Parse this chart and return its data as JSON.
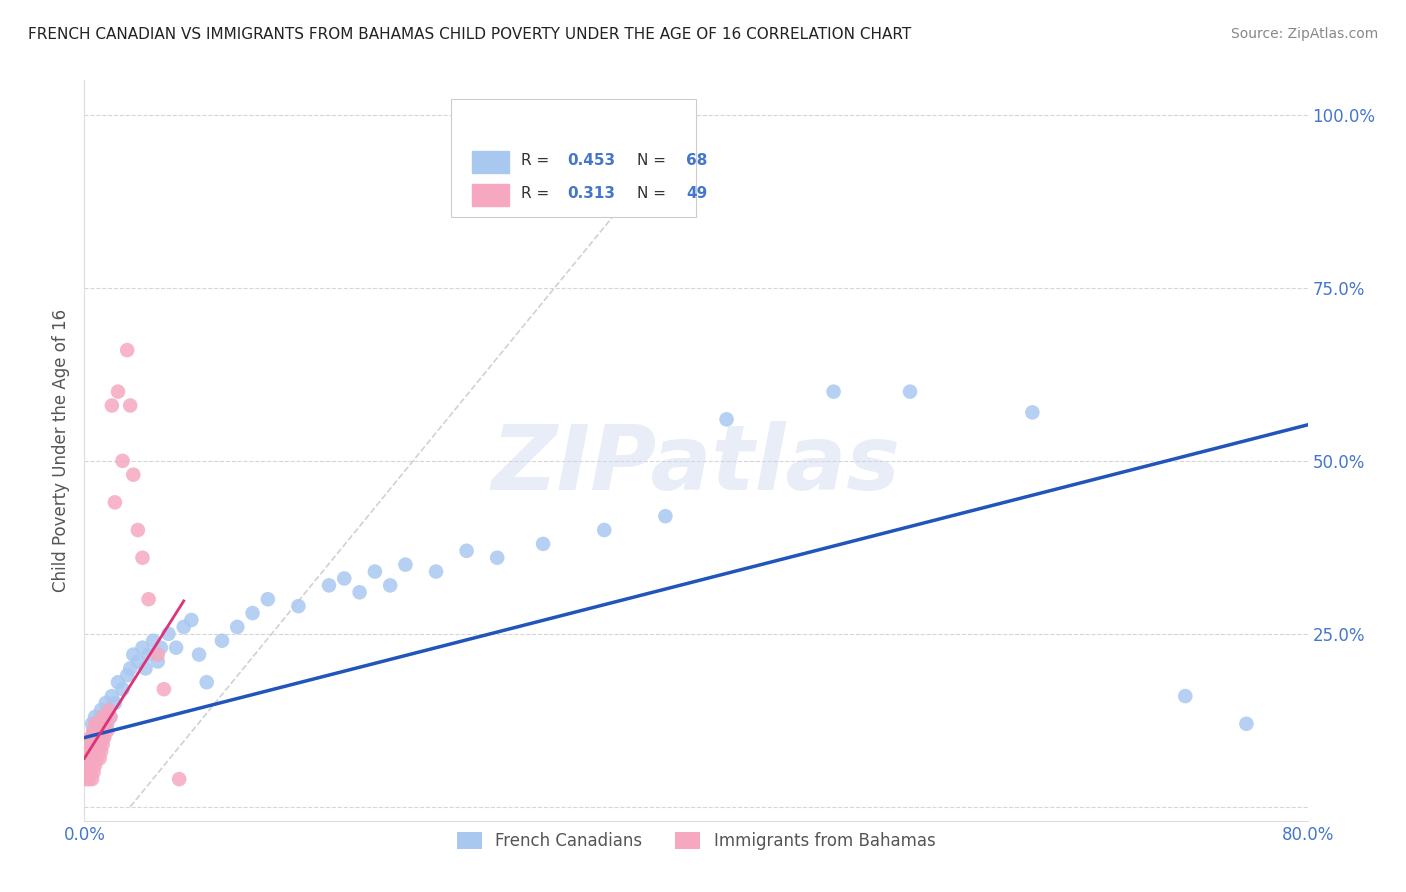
{
  "title": "FRENCH CANADIAN VS IMMIGRANTS FROM BAHAMAS CHILD POVERTY UNDER THE AGE OF 16 CORRELATION CHART",
  "source": "Source: ZipAtlas.com",
  "ylabel": "Child Poverty Under the Age of 16",
  "xlim": [
    0.0,
    0.8
  ],
  "ylim": [
    -0.02,
    1.05
  ],
  "ytick_vals": [
    0.0,
    0.25,
    0.5,
    0.75,
    1.0
  ],
  "ytick_labels": [
    "",
    "25.0%",
    "50.0%",
    "75.0%",
    "100.0%"
  ],
  "xtick_vals": [
    0.0,
    0.1,
    0.2,
    0.3,
    0.4,
    0.5,
    0.6,
    0.7,
    0.8
  ],
  "xtick_labels": [
    "0.0%",
    "",
    "",
    "",
    "",
    "",
    "",
    "",
    "80.0%"
  ],
  "watermark": "ZIPatlas",
  "blue_color": "#a8c8f0",
  "pink_color": "#f5a8c0",
  "blue_line_color": "#2255bb",
  "pink_line_color": "#dd3377",
  "legend_r_blue": "0.453",
  "legend_n_blue": "68",
  "legend_r_pink": "0.313",
  "legend_n_pink": "49",
  "legend_label_blue": "French Canadians",
  "legend_label_pink": "Immigrants from Bahamas",
  "title_color": "#222222",
  "axis_color": "#4477cc",
  "grid_color": "#cccccc",
  "bg_color": "#ffffff",
  "blue_scatter_x": [
    0.001,
    0.002,
    0.003,
    0.004,
    0.005,
    0.005,
    0.006,
    0.006,
    0.007,
    0.007,
    0.008,
    0.008,
    0.009,
    0.009,
    0.01,
    0.01,
    0.011,
    0.011,
    0.012,
    0.012,
    0.013,
    0.014,
    0.015,
    0.016,
    0.017,
    0.018,
    0.02,
    0.022,
    0.025,
    0.028,
    0.03,
    0.032,
    0.035,
    0.038,
    0.04,
    0.042,
    0.045,
    0.048,
    0.05,
    0.055,
    0.06,
    0.065,
    0.07,
    0.075,
    0.08,
    0.09,
    0.1,
    0.11,
    0.12,
    0.14,
    0.16,
    0.17,
    0.18,
    0.19,
    0.2,
    0.21,
    0.23,
    0.25,
    0.27,
    0.3,
    0.34,
    0.38,
    0.42,
    0.49,
    0.54,
    0.62,
    0.72,
    0.76
  ],
  "blue_scatter_y": [
    0.07,
    0.08,
    0.09,
    0.08,
    0.1,
    0.12,
    0.08,
    0.11,
    0.09,
    0.13,
    0.1,
    0.12,
    0.09,
    0.11,
    0.1,
    0.13,
    0.11,
    0.14,
    0.1,
    0.12,
    0.13,
    0.15,
    0.12,
    0.14,
    0.13,
    0.16,
    0.15,
    0.18,
    0.17,
    0.19,
    0.2,
    0.22,
    0.21,
    0.23,
    0.2,
    0.22,
    0.24,
    0.21,
    0.23,
    0.25,
    0.23,
    0.26,
    0.27,
    0.22,
    0.18,
    0.24,
    0.26,
    0.28,
    0.3,
    0.29,
    0.32,
    0.33,
    0.31,
    0.34,
    0.32,
    0.35,
    0.34,
    0.37,
    0.36,
    0.38,
    0.4,
    0.42,
    0.56,
    0.6,
    0.6,
    0.57,
    0.16,
    0.12
  ],
  "pink_scatter_x": [
    0.001,
    0.001,
    0.001,
    0.002,
    0.002,
    0.003,
    0.003,
    0.003,
    0.004,
    0.004,
    0.004,
    0.005,
    0.005,
    0.005,
    0.006,
    0.006,
    0.006,
    0.007,
    0.007,
    0.007,
    0.008,
    0.008,
    0.009,
    0.009,
    0.01,
    0.01,
    0.01,
    0.011,
    0.011,
    0.012,
    0.012,
    0.013,
    0.014,
    0.015,
    0.016,
    0.017,
    0.018,
    0.02,
    0.022,
    0.025,
    0.028,
    0.03,
    0.032,
    0.035,
    0.038,
    0.042,
    0.048,
    0.052,
    0.062
  ],
  "pink_scatter_y": [
    0.04,
    0.06,
    0.08,
    0.05,
    0.07,
    0.04,
    0.06,
    0.09,
    0.05,
    0.07,
    0.1,
    0.04,
    0.06,
    0.09,
    0.05,
    0.08,
    0.11,
    0.06,
    0.09,
    0.12,
    0.07,
    0.1,
    0.08,
    0.11,
    0.07,
    0.09,
    0.12,
    0.08,
    0.11,
    0.09,
    0.13,
    0.1,
    0.12,
    0.11,
    0.14,
    0.13,
    0.58,
    0.44,
    0.6,
    0.5,
    0.66,
    0.58,
    0.48,
    0.4,
    0.36,
    0.3,
    0.22,
    0.17,
    0.04
  ]
}
